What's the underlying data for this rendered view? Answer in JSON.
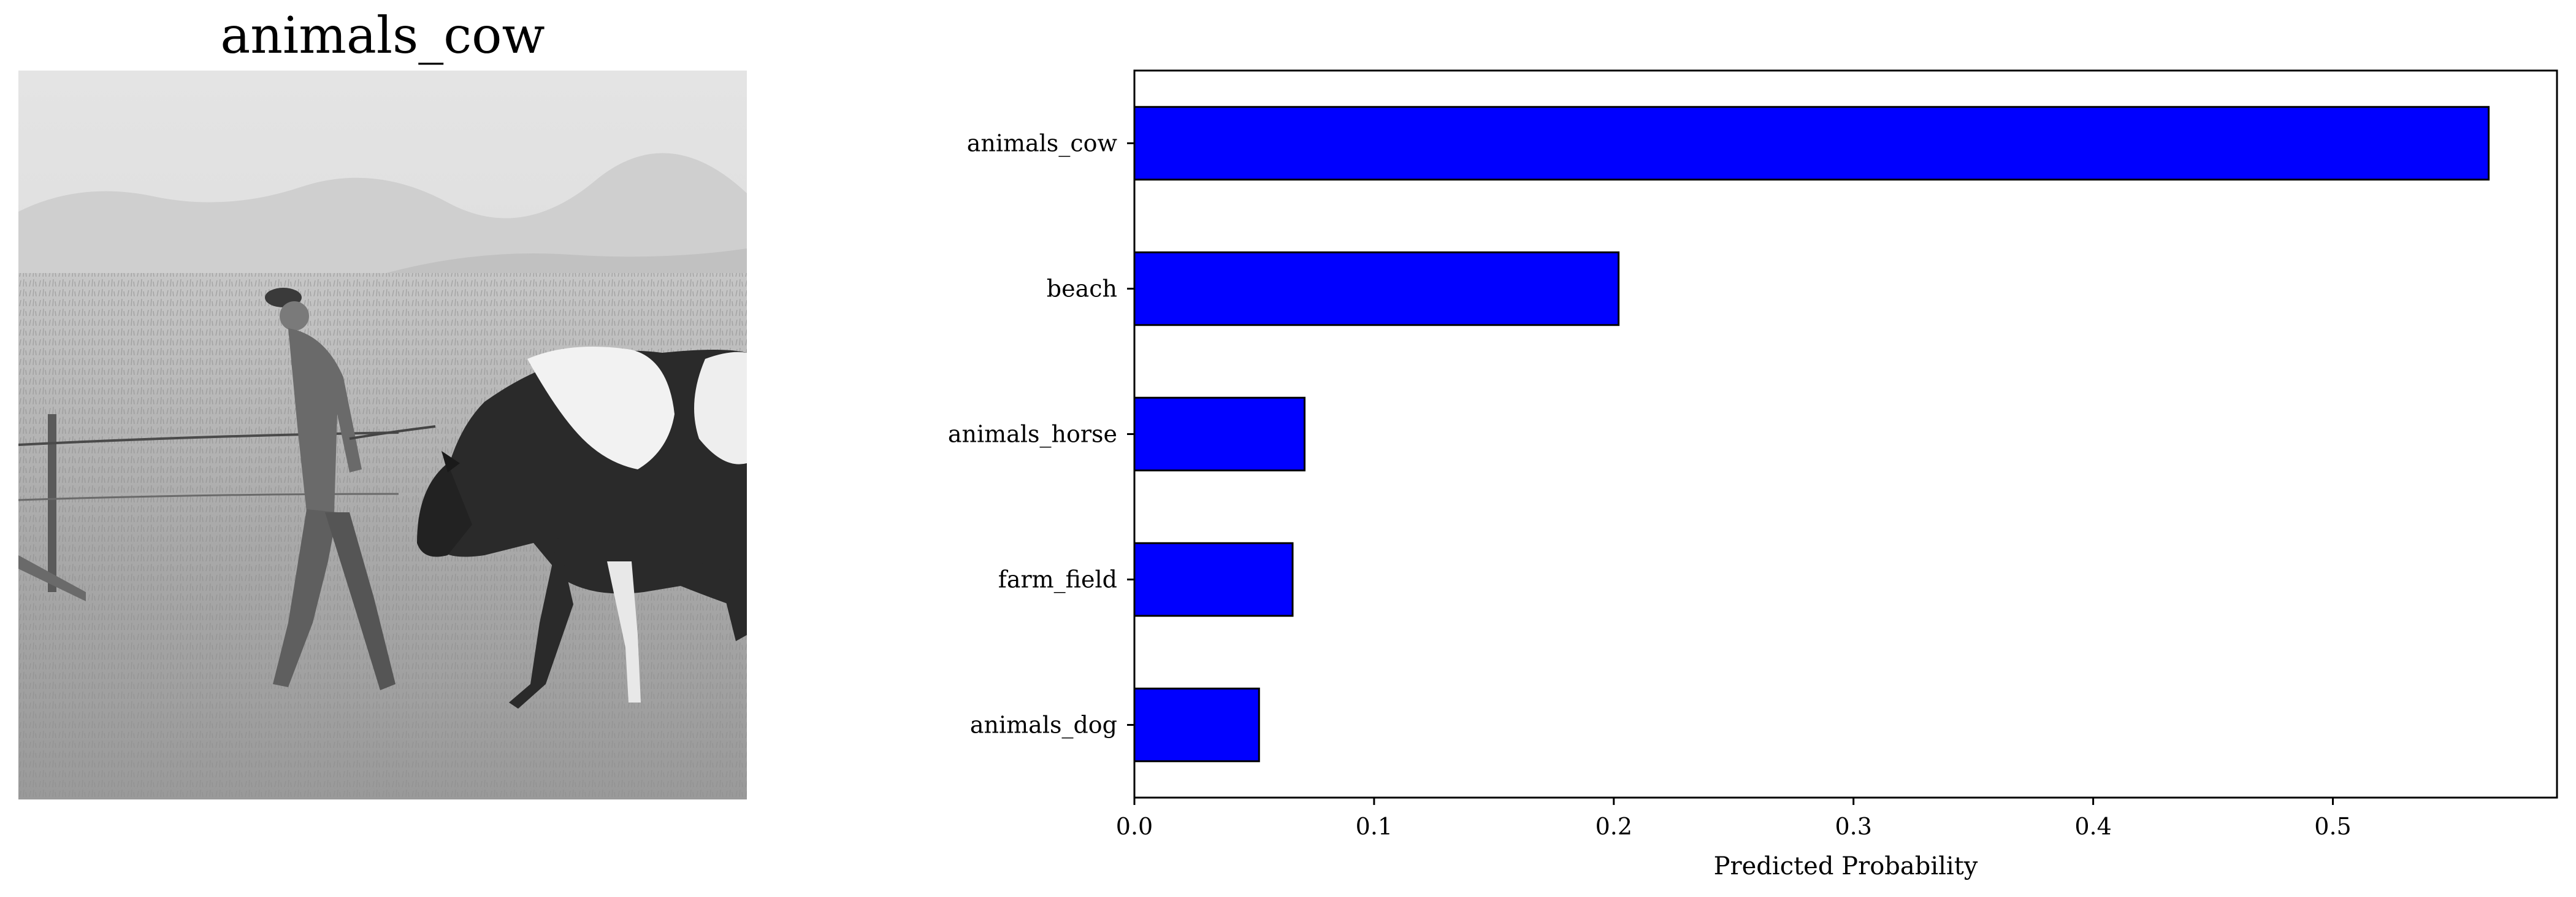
{
  "image": {
    "title": "animals_cow",
    "description_icon": "grayscale-photo"
  },
  "chart_data": {
    "type": "bar",
    "orientation": "horizontal",
    "categories": [
      "animals_cow",
      "beach",
      "animals_horse",
      "farm_field",
      "animals_dog"
    ],
    "values": [
      0.565,
      0.202,
      0.071,
      0.066,
      0.052
    ],
    "xlabel": "Predicted Probability",
    "ylabel": "",
    "xlim": [
      0.0,
      0.5935
    ],
    "xticks": [
      "0.0",
      "0.1",
      "0.2",
      "0.3",
      "0.4",
      "0.5"
    ],
    "bar_color": "#0000ff",
    "edge_color": "#000000",
    "grid": false,
    "legend": false
  }
}
